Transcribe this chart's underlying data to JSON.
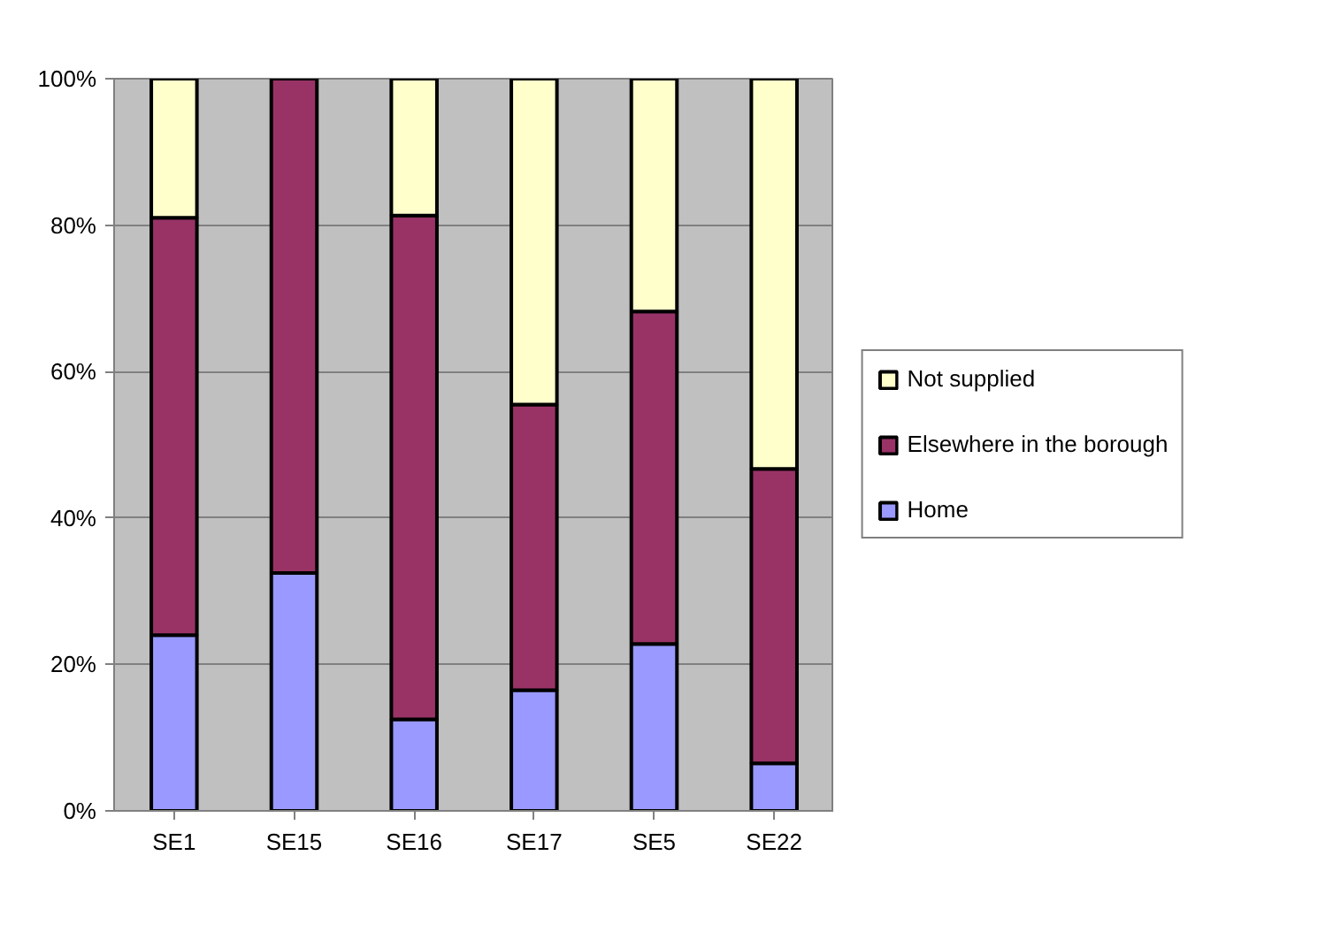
{
  "chart_data": {
    "type": "bar",
    "stacked": true,
    "categories": [
      "SE1",
      "SE15",
      "SE16",
      "SE17",
      "SE5",
      "SE22"
    ],
    "series": [
      {
        "name": "Home",
        "color": "#9999ff",
        "values": [
          24,
          32.5,
          12.5,
          16.5,
          22.8,
          6.5
        ]
      },
      {
        "name": "Elsewhere in the borough",
        "color": "#993366",
        "values": [
          57,
          67.5,
          68.8,
          39,
          45.4,
          40.2
        ]
      },
      {
        "name": "Not supplied",
        "color": "#ffffcc",
        "values": [
          19,
          0,
          18.7,
          44.5,
          31.8,
          53.3
        ]
      }
    ],
    "ylim": [
      0,
      100
    ],
    "yticks": [
      {
        "value": 0,
        "label": "0%"
      },
      {
        "value": 20,
        "label": "20%"
      },
      {
        "value": 40,
        "label": "40%"
      },
      {
        "value": 60,
        "label": "60%"
      },
      {
        "value": 80,
        "label": "80%"
      },
      {
        "value": 100,
        "label": "100%"
      }
    ],
    "grid": "y",
    "legend": "right"
  }
}
